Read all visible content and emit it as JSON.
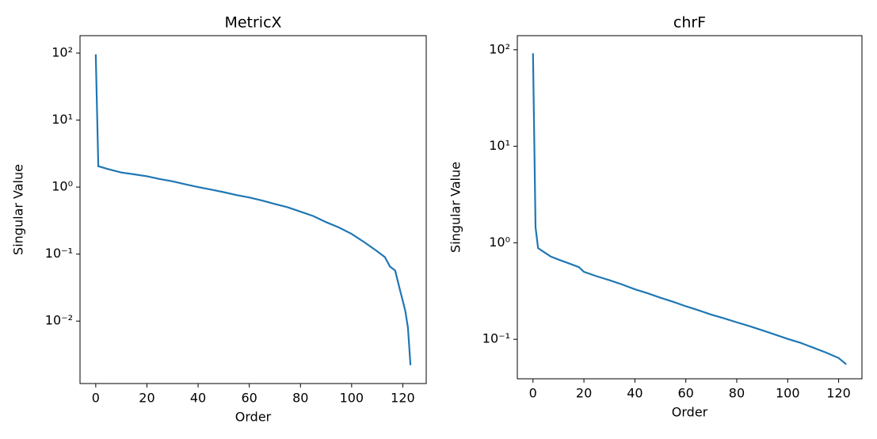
{
  "chart_data": [
    {
      "type": "line",
      "title": "MetricX",
      "xlabel": "Order",
      "ylabel": "Singular Value",
      "log_y": true,
      "xlim": [
        -6.15,
        129.15
      ],
      "xticks": [
        0,
        20,
        40,
        60,
        80,
        100,
        120
      ],
      "ylim": [
        0.00117,
        182
      ],
      "yticks": [
        {
          "value": 0.01,
          "label": "10⁻²"
        },
        {
          "value": 0.1,
          "label": "10⁻¹"
        },
        {
          "value": 1,
          "label": "10⁰"
        },
        {
          "value": 10,
          "label": "10¹"
        },
        {
          "value": 100,
          "label": "10²"
        }
      ],
      "series": [
        {
          "color": "#1f77b4",
          "x": [
            0,
            1,
            2,
            5,
            10,
            15,
            20,
            25,
            30,
            35,
            40,
            45,
            50,
            55,
            60,
            65,
            70,
            75,
            80,
            85,
            90,
            95,
            100,
            105,
            110,
            113,
            115,
            117,
            118,
            119,
            120,
            121,
            122,
            123
          ],
          "values": [
            96,
            2.05,
            2.0,
            1.85,
            1.65,
            1.55,
            1.45,
            1.32,
            1.22,
            1.1,
            1.0,
            0.92,
            0.84,
            0.76,
            0.7,
            0.63,
            0.56,
            0.5,
            0.43,
            0.37,
            0.3,
            0.25,
            0.2,
            0.15,
            0.11,
            0.09,
            0.065,
            0.057,
            0.04,
            0.028,
            0.02,
            0.014,
            0.008,
            0.0022
          ]
        }
      ]
    },
    {
      "type": "line",
      "title": "chrF",
      "xlabel": "Order",
      "ylabel": "Singular Value",
      "log_y": true,
      "xlim": [
        -6.15,
        129.15
      ],
      "xticks": [
        0,
        20,
        40,
        60,
        80,
        100,
        120
      ],
      "ylim": [
        0.039,
        140
      ],
      "yticks": [
        {
          "value": 0.1,
          "label": "10⁻¹"
        },
        {
          "value": 1,
          "label": "10⁰"
        },
        {
          "value": 10,
          "label": "10¹"
        },
        {
          "value": 100,
          "label": "10²"
        }
      ],
      "series": [
        {
          "color": "#1f77b4",
          "x": [
            0,
            1,
            2,
            5,
            7,
            10,
            15,
            18,
            20,
            25,
            30,
            35,
            40,
            45,
            50,
            55,
            60,
            65,
            70,
            75,
            80,
            85,
            90,
            95,
            100,
            105,
            110,
            115,
            120,
            123
          ],
          "values": [
            92,
            1.45,
            0.88,
            0.78,
            0.72,
            0.67,
            0.6,
            0.56,
            0.5,
            0.45,
            0.41,
            0.37,
            0.33,
            0.3,
            0.27,
            0.245,
            0.22,
            0.2,
            0.18,
            0.165,
            0.15,
            0.137,
            0.124,
            0.112,
            0.101,
            0.092,
            0.082,
            0.073,
            0.064,
            0.055
          ]
        }
      ]
    }
  ]
}
